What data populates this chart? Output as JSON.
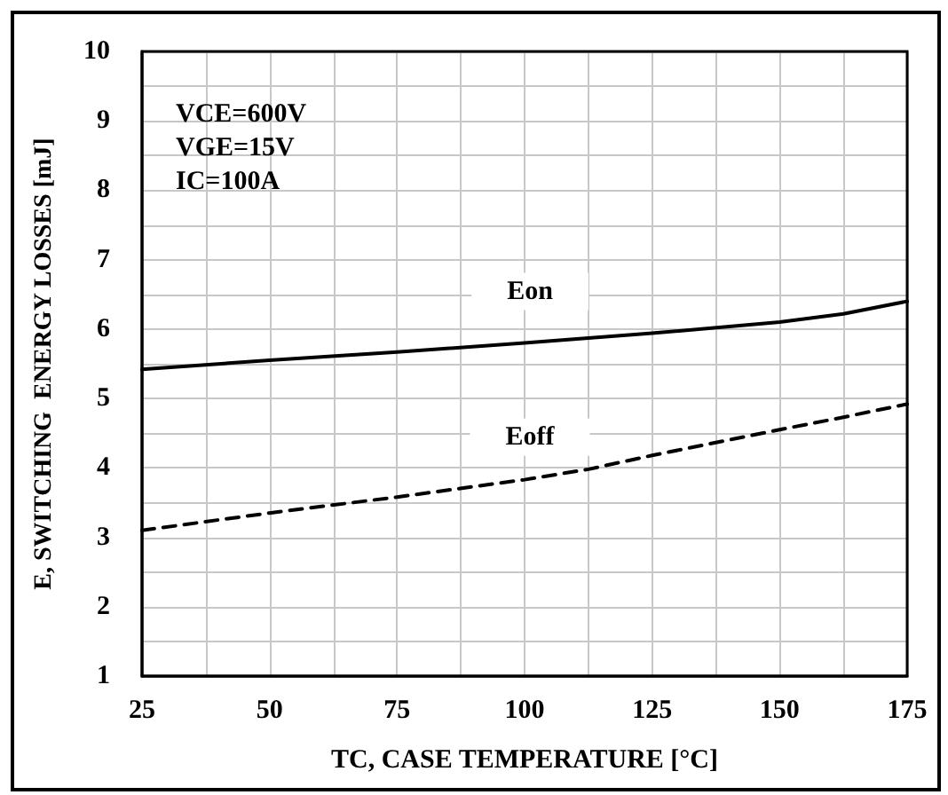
{
  "chart_data": {
    "type": "line",
    "xlabel": "TC, CASE TEMPERATURE [°C]",
    "ylabel": "E, SWITCHING  ENERGY LOSSES [mJ]",
    "annotations": [
      "VCE=600V",
      "VGE=15V",
      "IC=100A"
    ],
    "x": [
      25,
      50,
      75,
      100,
      112.5,
      125,
      150,
      162.5,
      175
    ],
    "series": [
      {
        "name": "Eon",
        "color": "#000000",
        "line_style": "solid",
        "values": [
          5.42,
          5.55,
          5.67,
          5.8,
          5.87,
          5.94,
          6.1,
          6.22,
          6.4
        ]
      },
      {
        "name": "Eoff",
        "color": "#000000",
        "line_style": "dashed",
        "values": [
          3.1,
          3.35,
          3.58,
          3.83,
          3.98,
          4.18,
          4.55,
          4.73,
          4.92
        ]
      }
    ],
    "xlim": [
      25,
      175
    ],
    "xticks": [
      25,
      {
        "value": 37.5,
        "label": null
      },
      50,
      {
        "value": 62.5,
        "label": null
      },
      75,
      {
        "value": 87.5,
        "label": null
      },
      100,
      {
        "value": 112.5,
        "label": null
      },
      125,
      {
        "value": 137.5,
        "label": null
      },
      150,
      {
        "value": 162.5,
        "label": null
      },
      175
    ],
    "ylim": [
      1,
      10
    ],
    "yticks": [
      1,
      {
        "value": 1.5,
        "label": null
      },
      2,
      {
        "value": 2.5,
        "label": null
      },
      3,
      {
        "value": 3.5,
        "label": null
      },
      4,
      {
        "value": 4.5,
        "label": null
      },
      5,
      {
        "value": 5.5,
        "label": null
      },
      6,
      {
        "value": 6.5,
        "label": null
      },
      7,
      {
        "value": 7.5,
        "label": null
      },
      8,
      {
        "value": 8.5,
        "label": null
      },
      9,
      {
        "value": 9.5,
        "label": null
      },
      10
    ],
    "grid": true,
    "legend": false,
    "marker": "none"
  }
}
